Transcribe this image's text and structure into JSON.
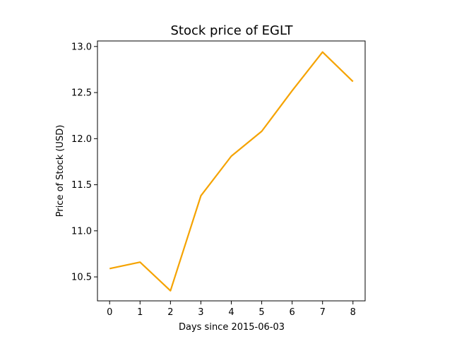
{
  "chart_data": {
    "type": "line",
    "title": "Stock price of EGLT",
    "xlabel": "Days since 2015-06-03",
    "ylabel": "Price of Stock (USD)",
    "x": [
      0,
      1,
      2,
      3,
      4,
      5,
      6,
      7,
      8
    ],
    "series": [
      {
        "values": [
          10.59,
          10.66,
          10.35,
          11.38,
          11.81,
          12.08,
          12.52,
          12.94,
          12.62
        ],
        "color": "#f5a300"
      }
    ],
    "xlim": [
      -0.4,
      8.4
    ],
    "ylim": [
      10.24,
      13.06
    ],
    "xticks": [
      0,
      1,
      2,
      3,
      4,
      5,
      6,
      7,
      8
    ],
    "xtick_labels": [
      "0",
      "1",
      "2",
      "3",
      "4",
      "5",
      "6",
      "7",
      "8"
    ],
    "yticks": [
      10.5,
      11.0,
      11.5,
      12.0,
      12.5,
      13.0
    ],
    "ytick_labels": [
      "10.5",
      "11.0",
      "11.5",
      "12.0",
      "12.5",
      "13.0"
    ],
    "grid": false,
    "legend": false
  }
}
